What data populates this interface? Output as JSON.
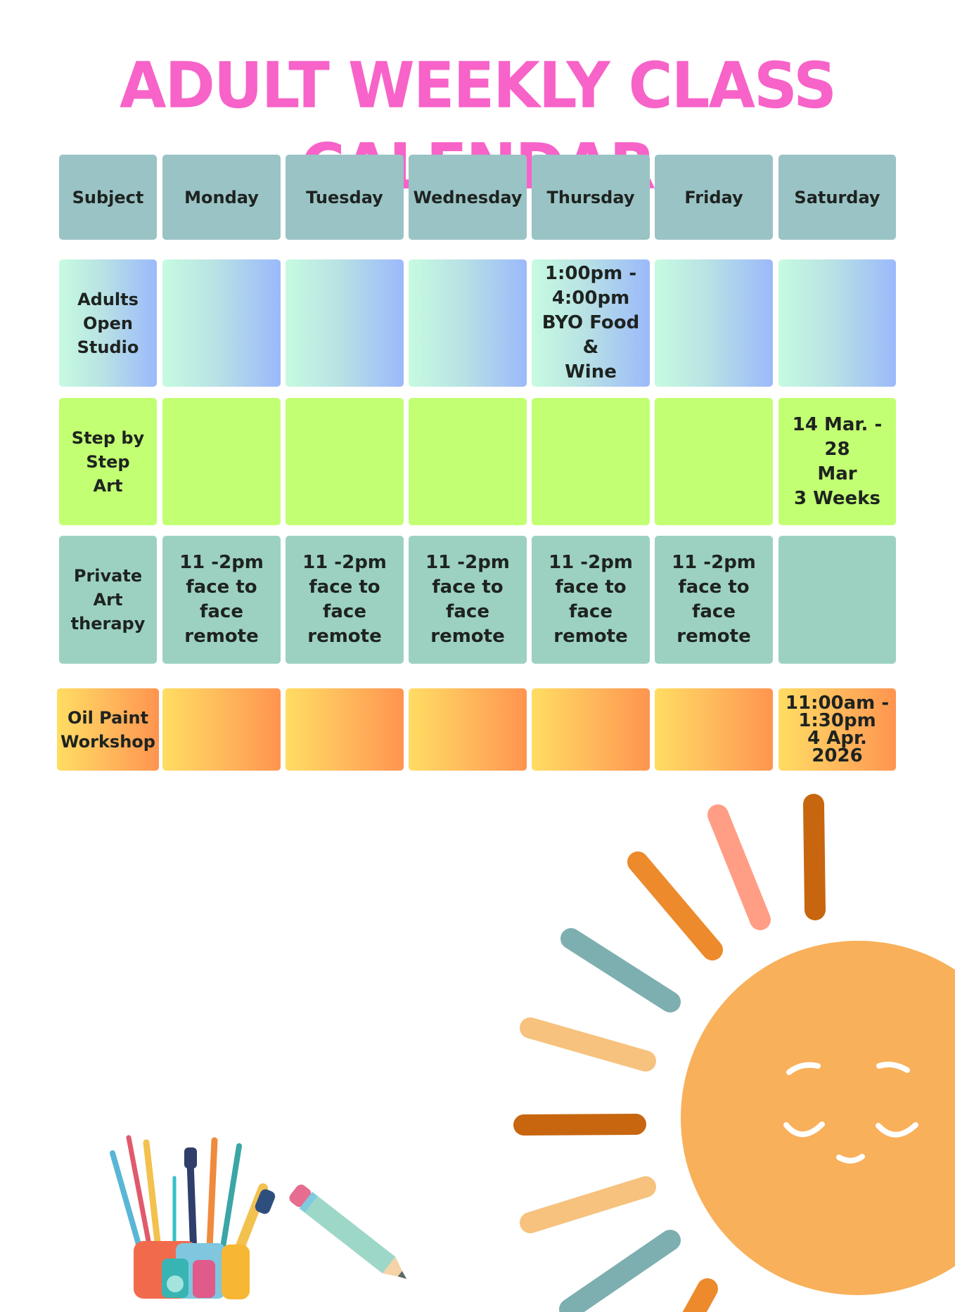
{
  "title": "Adult Weekly Class Calendar",
  "header": {
    "subject": "Subject",
    "days": [
      "Monday",
      "Tuesday",
      "Wednesday",
      "Thursday",
      "Friday",
      "Saturday"
    ]
  },
  "rows": {
    "open_studio": {
      "subject": "Adults\nOpen\nStudio",
      "cells": [
        "",
        "",
        "",
        "1:00pm -\n4:00pm\nBYO Food &\nWine",
        "",
        ""
      ]
    },
    "step_by_step": {
      "subject": "Step by\nStep\nArt",
      "cells": [
        "",
        "",
        "",
        "",
        "",
        "14 Mar. - 28\nMar\n3 Weeks"
      ]
    },
    "therapy": {
      "subject": "Private Art\ntherapy",
      "cells": [
        "11 -2pm\nface to face\nremote",
        "11 -2pm\nface to face\nremote",
        "11 -2pm\nface to face\nremote",
        "11 -2pm\nface to face\nremote",
        "11 -2pm\nface to face\nremote",
        ""
      ]
    },
    "oil_paint": {
      "subject": "Oil Paint\nWorkshop",
      "cells": [
        "",
        "",
        "",
        "",
        "",
        "11:00am -\n1:30pm\n4 Apr. 2026"
      ]
    }
  },
  "colors": {
    "title": "#f763c8",
    "header": "#9ac3c5",
    "step_row": "#c2ff72",
    "therapy_row": "#9cd1c2",
    "sun": "#f8b05a"
  },
  "illustrations": [
    "sun-illustration",
    "paint-brush-cup-illustration",
    "pencil-illustration"
  ]
}
